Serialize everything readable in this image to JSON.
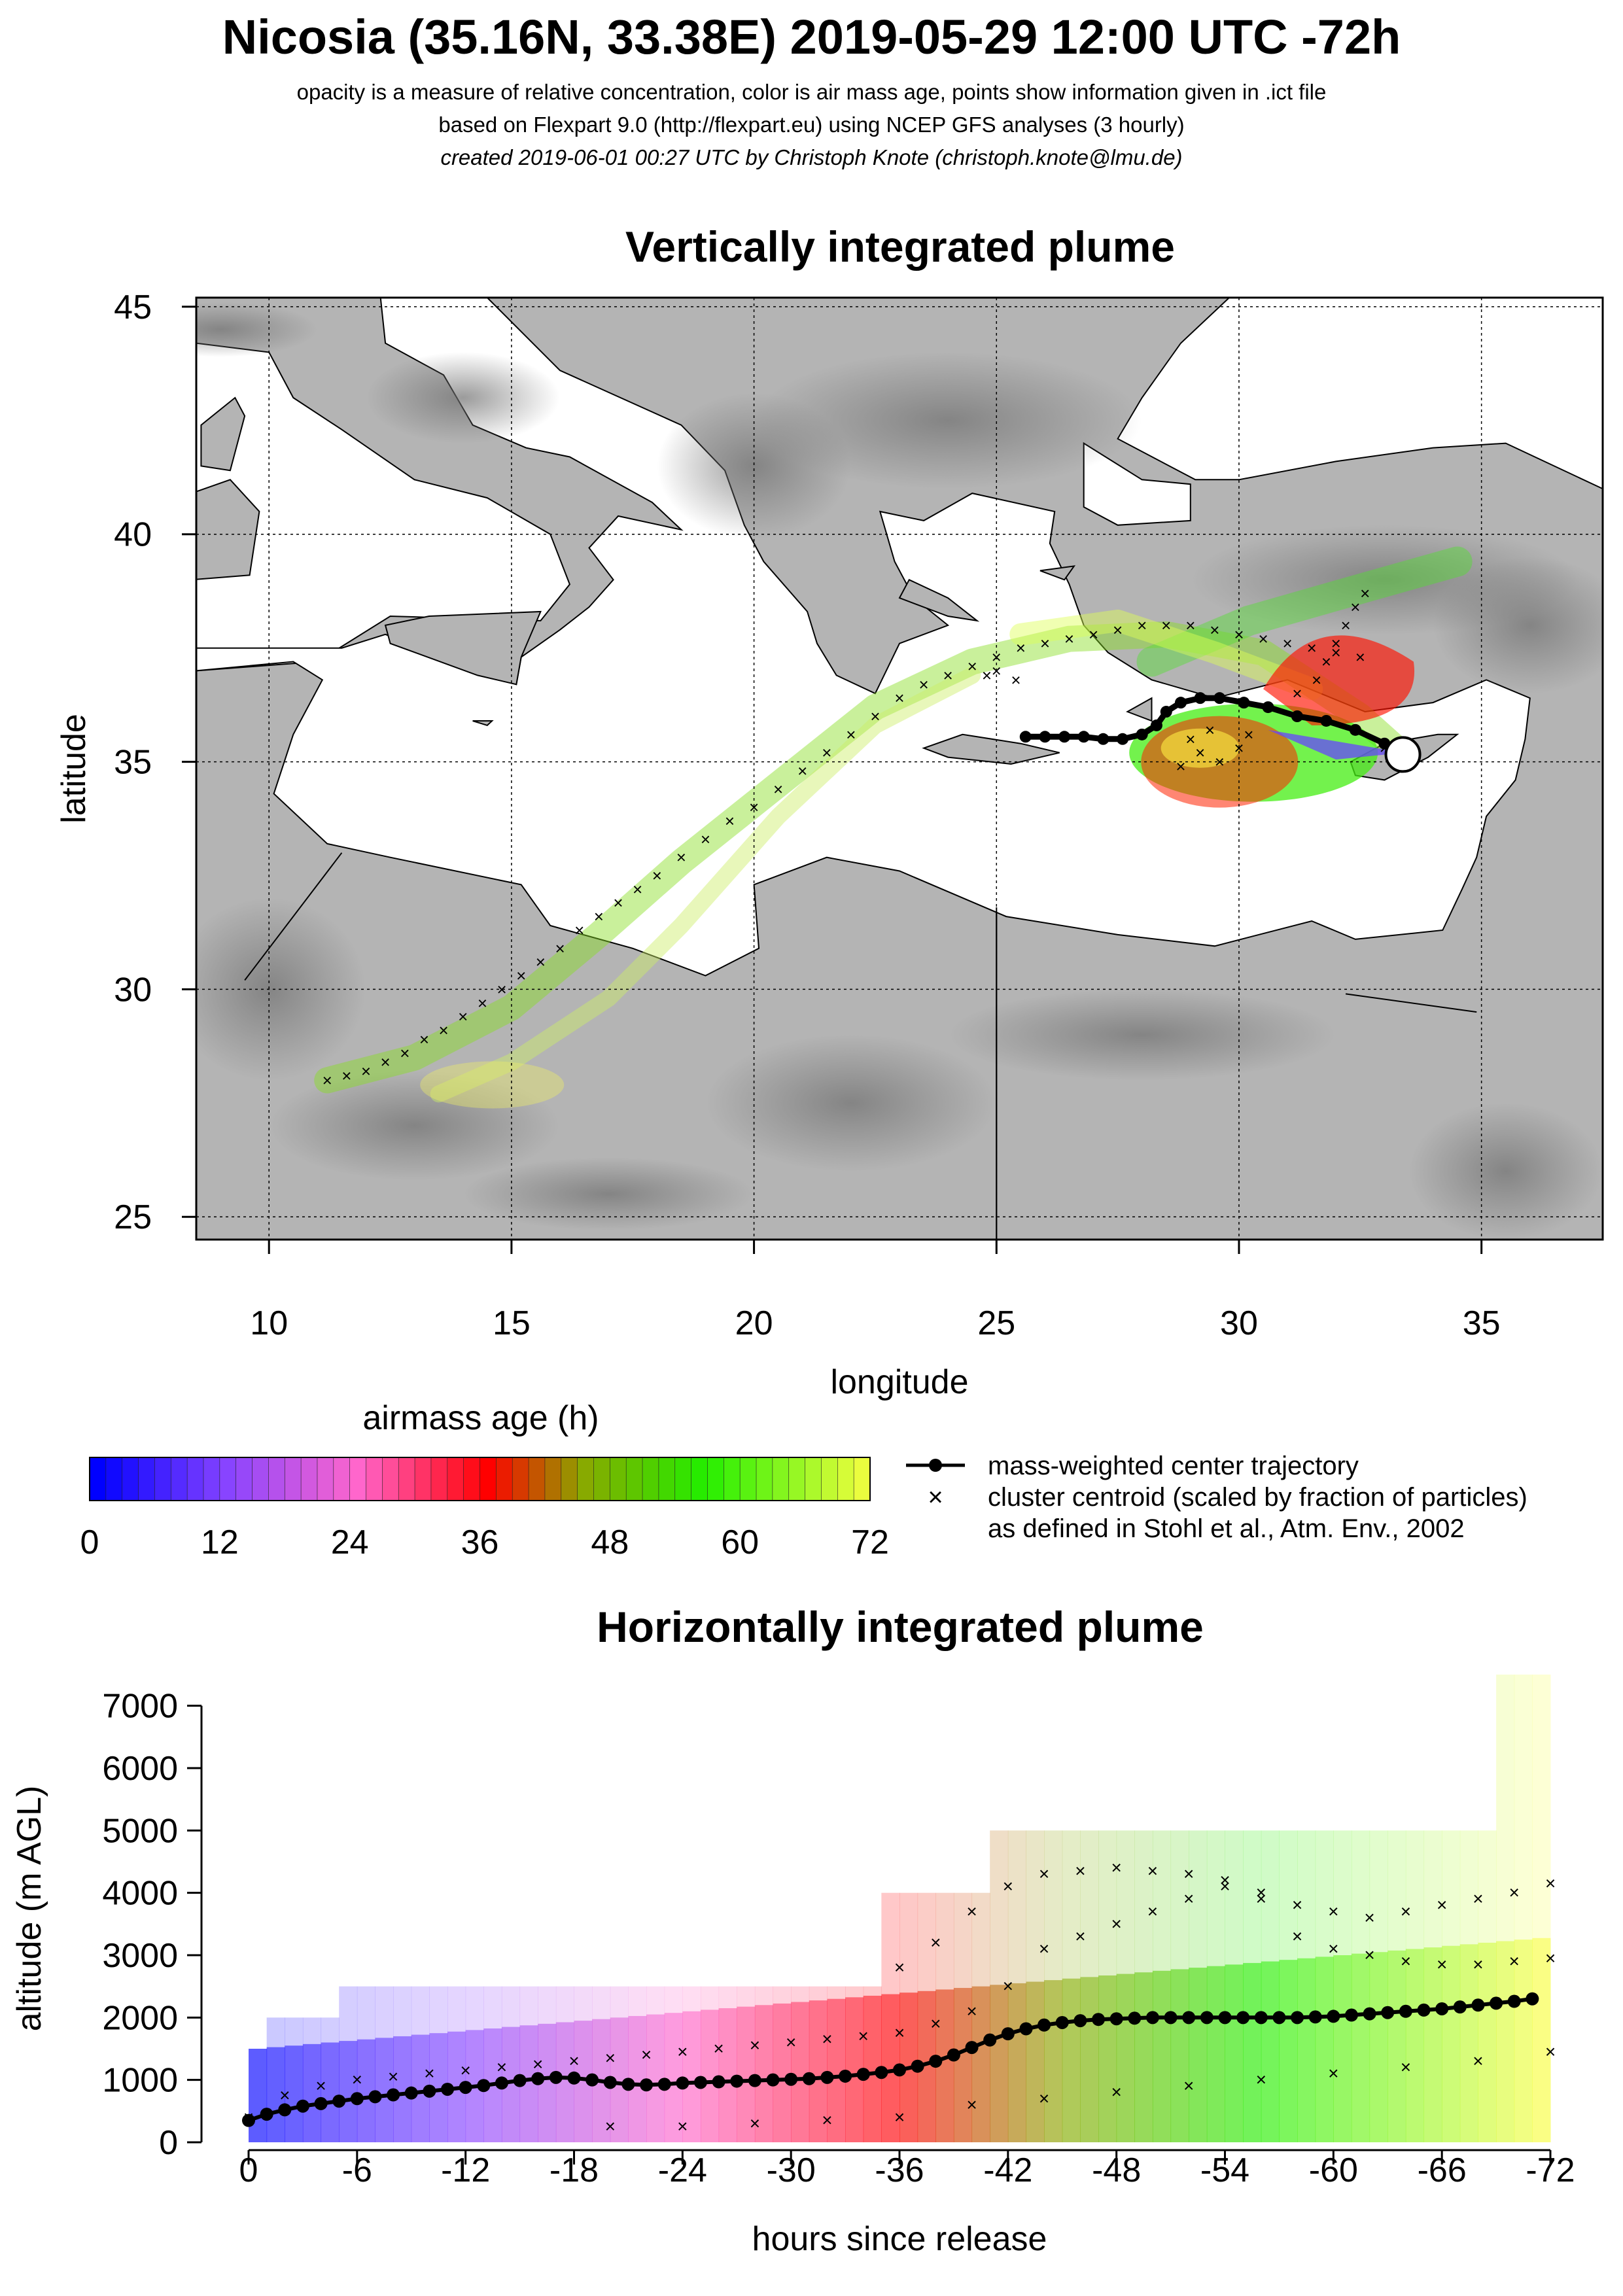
{
  "header": {
    "title": "Nicosia (35.16N, 33.38E) 2019-05-29 12:00 UTC -72h",
    "subtitle_1": "opacity is a measure of relative concentration, color is air mass age, points show information given in .ict file",
    "subtitle_2": "based on Flexpart 9.0 (http://flexpart.eu) using NCEP GFS analyses (3 hourly)",
    "subtitle_3": "created 2019-06-01 00:27 UTC by Christoph Knote (christoph.knote@lmu.de)"
  },
  "colors": {
    "land": "#b4b4b4",
    "sea": "#ffffff",
    "age_0": "#0000ff",
    "age_12": "#8844ff",
    "age_24": "#ff66cc",
    "age_36": "#ff0000",
    "age_48": "#66cc00",
    "age_60": "#22ee00",
    "age_72": "#ffff44"
  },
  "chart_data": [
    {
      "type": "scatter",
      "title": "Vertically integrated plume",
      "xlabel": "longitude",
      "ylabel": "latitude",
      "xlim": [
        8.5,
        37.5
      ],
      "ylim": [
        24.5,
        45.2
      ],
      "xticks": [
        10,
        15,
        20,
        25,
        30,
        35
      ],
      "yticks": [
        25,
        30,
        35,
        40,
        45
      ],
      "grid": true,
      "release_point": {
        "lon": 33.38,
        "lat": 35.16
      },
      "series": [
        {
          "name": "mass-weighted center trajectory",
          "lon": [
            33.38,
            33.0,
            32.4,
            31.8,
            31.2,
            30.6,
            30.1,
            29.6,
            29.2,
            28.8,
            28.5,
            28.3,
            28.0,
            27.6,
            27.2,
            26.8,
            26.4,
            26.0,
            25.6
          ],
          "lat": [
            35.16,
            35.4,
            35.7,
            35.9,
            36.0,
            36.2,
            36.3,
            36.4,
            36.4,
            36.3,
            36.1,
            35.8,
            35.6,
            35.5,
            35.5,
            35.55,
            35.55,
            35.55,
            35.55
          ]
        },
        {
          "name": "cluster centroid (scaled by fraction of particles)",
          "lon": [
            11.2,
            11.6,
            12.0,
            12.4,
            12.8,
            13.2,
            13.6,
            14.0,
            14.4,
            14.8,
            15.2,
            15.6,
            16.0,
            16.4,
            16.8,
            17.2,
            17.6,
            18.0,
            18.5,
            19.0,
            19.5,
            20.0,
            20.5,
            21.0,
            21.5,
            22.0,
            22.5,
            23.0,
            23.5,
            24.0,
            24.5,
            25.0,
            25.5,
            26.0,
            26.5,
            27.0,
            27.5,
            28.0,
            28.5,
            29.0,
            29.5,
            30.0,
            30.5,
            31.0,
            31.5,
            32.0,
            32.5,
            33.0,
            31.6,
            31.8,
            32.0,
            32.2,
            32.4,
            32.6,
            31.2,
            29.2,
            29.6,
            30.0,
            28.8,
            29.0,
            29.4,
            30.2,
            24.8,
            25.0,
            25.4
          ],
          "lat": [
            28.0,
            28.1,
            28.2,
            28.4,
            28.6,
            28.9,
            29.1,
            29.4,
            29.7,
            30.0,
            30.3,
            30.6,
            30.9,
            31.3,
            31.6,
            31.9,
            32.2,
            32.5,
            32.9,
            33.3,
            33.7,
            34.0,
            34.4,
            34.8,
            35.2,
            35.6,
            36.0,
            36.4,
            36.7,
            36.9,
            37.1,
            37.3,
            37.5,
            37.6,
            37.7,
            37.8,
            37.9,
            38.0,
            38.0,
            38.0,
            37.9,
            37.8,
            37.7,
            37.6,
            37.5,
            37.4,
            37.3,
            35.3,
            36.8,
            37.2,
            37.6,
            38.0,
            38.4,
            38.7,
            36.5,
            35.2,
            35.0,
            35.3,
            34.9,
            35.5,
            35.7,
            35.6,
            36.9,
            37.0,
            36.8
          ]
        }
      ]
    },
    {
      "type": "scatter",
      "title": "Horizontally integrated plume",
      "xlabel": "hours since release",
      "ylabel": "altitude (m AGL)",
      "xlim": [
        0,
        -72
      ],
      "ylim": [
        0,
        7500
      ],
      "xticks": [
        0,
        -6,
        -12,
        -18,
        -24,
        -30,
        -36,
        -42,
        -48,
        -54,
        -60,
        -66,
        -72
      ],
      "yticks": [
        0,
        1000,
        2000,
        3000,
        4000,
        5000,
        6000,
        7000
      ],
      "series": [
        {
          "name": "mass-weighted center trajectory",
          "x": [
            0,
            -1,
            -2,
            -3,
            -4,
            -5,
            -6,
            -7,
            -8,
            -9,
            -10,
            -11,
            -12,
            -13,
            -14,
            -15,
            -16,
            -17,
            -18,
            -19,
            -20,
            -21,
            -22,
            -23,
            -24,
            -25,
            -26,
            -27,
            -28,
            -29,
            -30,
            -31,
            -32,
            -33,
            -34,
            -35,
            -36,
            -37,
            -38,
            -39,
            -40,
            -41,
            -42,
            -43,
            -44,
            -45,
            -46,
            -47,
            -48,
            -49,
            -50,
            -51,
            -52,
            -53,
            -54,
            -55,
            -56,
            -57,
            -58,
            -59,
            -60,
            -61,
            -62,
            -63,
            -64,
            -65,
            -66,
            -67,
            -68,
            -69,
            -70,
            -71
          ],
          "y": [
            350,
            450,
            520,
            580,
            620,
            660,
            700,
            730,
            760,
            790,
            820,
            850,
            880,
            910,
            950,
            990,
            1020,
            1040,
            1030,
            1000,
            960,
            930,
            920,
            930,
            950,
            960,
            970,
            980,
            990,
            1000,
            1010,
            1020,
            1040,
            1060,
            1090,
            1120,
            1160,
            1220,
            1300,
            1400,
            1520,
            1640,
            1740,
            1820,
            1880,
            1920,
            1950,
            1970,
            1980,
            1990,
            2000,
            2000,
            2000,
            2000,
            2000,
            2000,
            2000,
            2000,
            2000,
            2010,
            2020,
            2040,
            2060,
            2080,
            2100,
            2120,
            2140,
            2170,
            2200,
            2230,
            2260,
            2300
          ]
        },
        {
          "name": "cluster centroid (scaled by fraction of particles)",
          "x": [
            0,
            -2,
            -4,
            -6,
            -8,
            -10,
            -12,
            -14,
            -16,
            -18,
            -20,
            -22,
            -24,
            -26,
            -28,
            -30,
            -32,
            -34,
            -36,
            -38,
            -40,
            -42,
            -44,
            -46,
            -48,
            -50,
            -52,
            -54,
            -56,
            -58,
            -60,
            -62,
            -64,
            -66,
            -68,
            -70,
            -72,
            -36,
            -38,
            -40,
            -42,
            -44,
            -46,
            -48,
            -50,
            -52,
            -54,
            -56,
            -58,
            -60,
            -62,
            -64,
            -66,
            -68,
            -70,
            -72,
            -20,
            -24,
            -28,
            -32,
            -36,
            -40,
            -44,
            -48,
            -52,
            -56,
            -60,
            -64,
            -68,
            -72
          ],
          "y": [
            400,
            750,
            900,
            1000,
            1050,
            1100,
            1150,
            1200,
            1250,
            1300,
            1350,
            1400,
            1450,
            1500,
            1550,
            1600,
            1650,
            1700,
            1750,
            1900,
            2100,
            2500,
            3100,
            3300,
            3500,
            3700,
            3900,
            4100,
            4000,
            3800,
            3700,
            3600,
            3700,
            3800,
            3900,
            4000,
            4150,
            2800,
            3200,
            3700,
            4100,
            4300,
            4350,
            4400,
            4350,
            4300,
            4200,
            3900,
            3300,
            3100,
            3000,
            2900,
            2850,
            2850,
            2900,
            2950,
            250,
            250,
            300,
            350,
            400,
            600,
            700,
            800,
            900,
            1000,
            1100,
            1200,
            1300,
            1450
          ]
        }
      ]
    }
  ],
  "colorbar": {
    "title": "airmass age (h)",
    "ticks": [
      0,
      12,
      24,
      36,
      48,
      60,
      72
    ],
    "min": 0,
    "max": 72
  }
}
